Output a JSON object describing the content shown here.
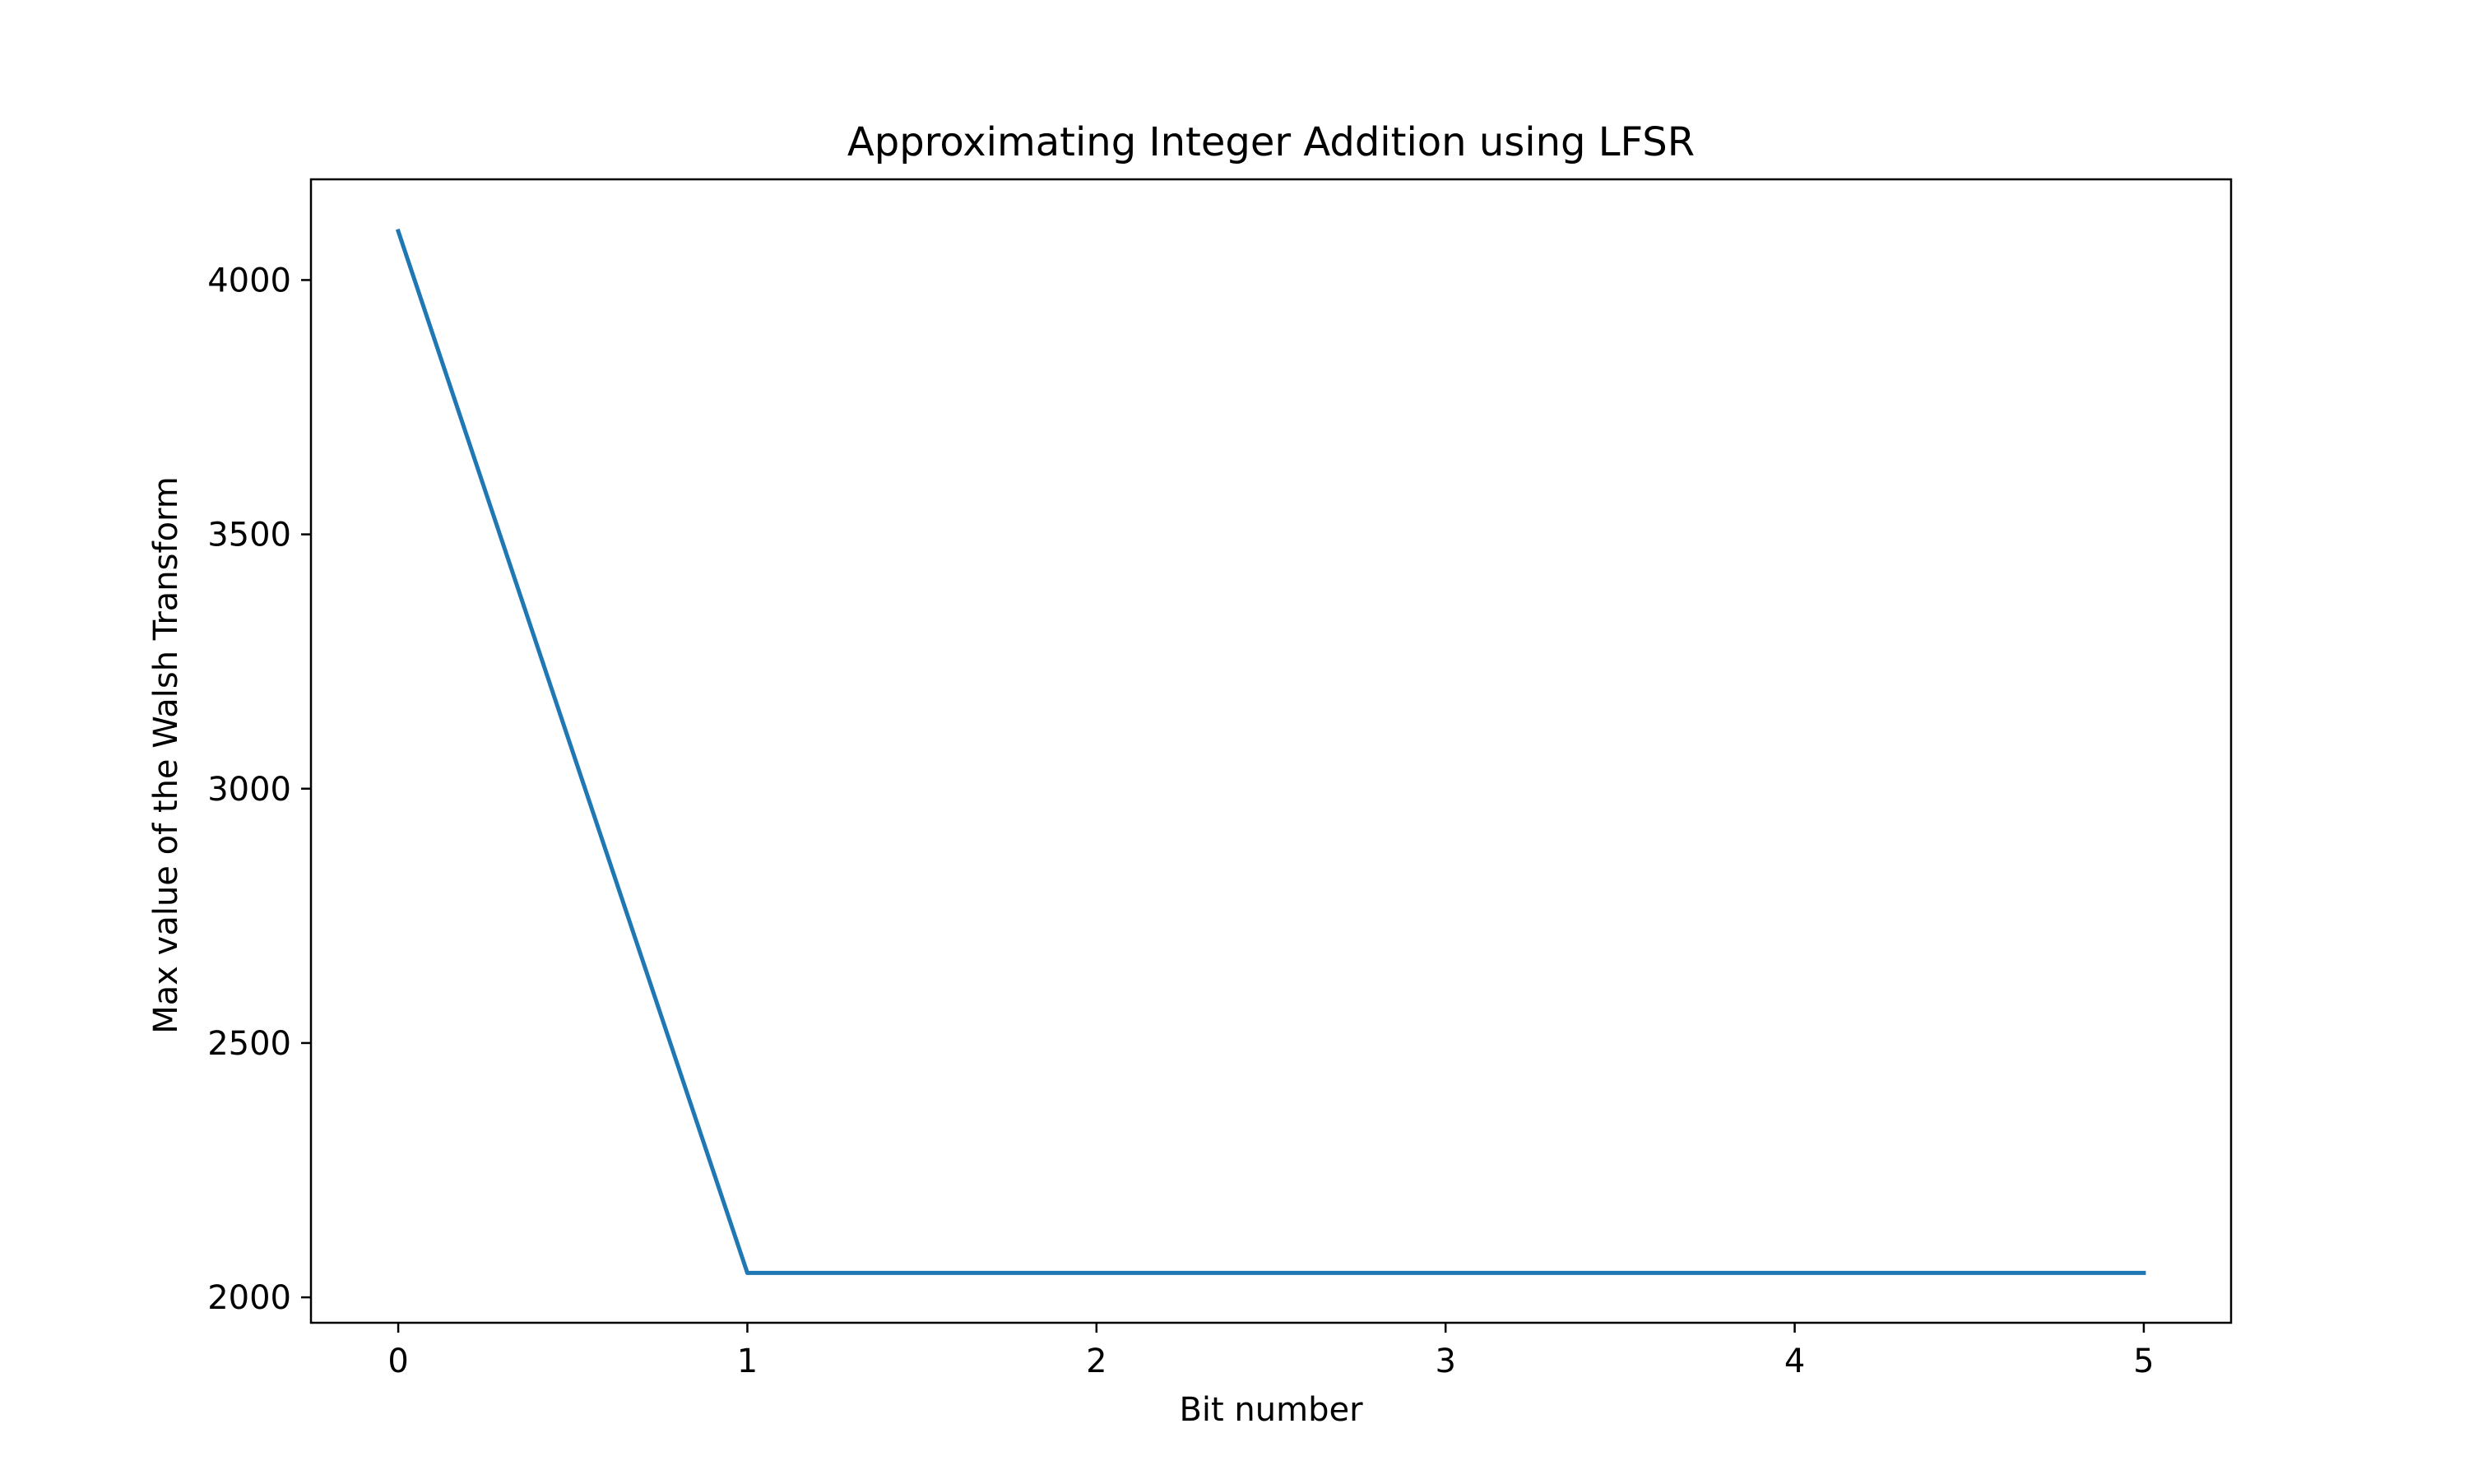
{
  "chart_data": {
    "type": "line",
    "title": "Approximating Integer Addition using LFSR",
    "xlabel": "Bit number",
    "ylabel": "Max value of the Walsh Transform",
    "x": [
      0,
      1,
      2,
      3,
      4,
      5
    ],
    "series": [
      {
        "values": [
          4096,
          2048,
          2048,
          2048,
          2048,
          2048
        ],
        "color": "#1f77b4"
      }
    ],
    "xlim": [
      -0.25,
      5.25
    ],
    "ylim": [
      1950,
      4198
    ],
    "xticks": [
      0,
      1,
      2,
      3,
      4,
      5
    ],
    "xtick_labels": [
      "0",
      "1",
      "2",
      "3",
      "4",
      "5"
    ],
    "yticks": [
      2000,
      2500,
      3000,
      3500,
      4000
    ],
    "ytick_labels": [
      "2000",
      "2500",
      "3000",
      "3500",
      "4000"
    ],
    "grid": false,
    "legend": false
  }
}
